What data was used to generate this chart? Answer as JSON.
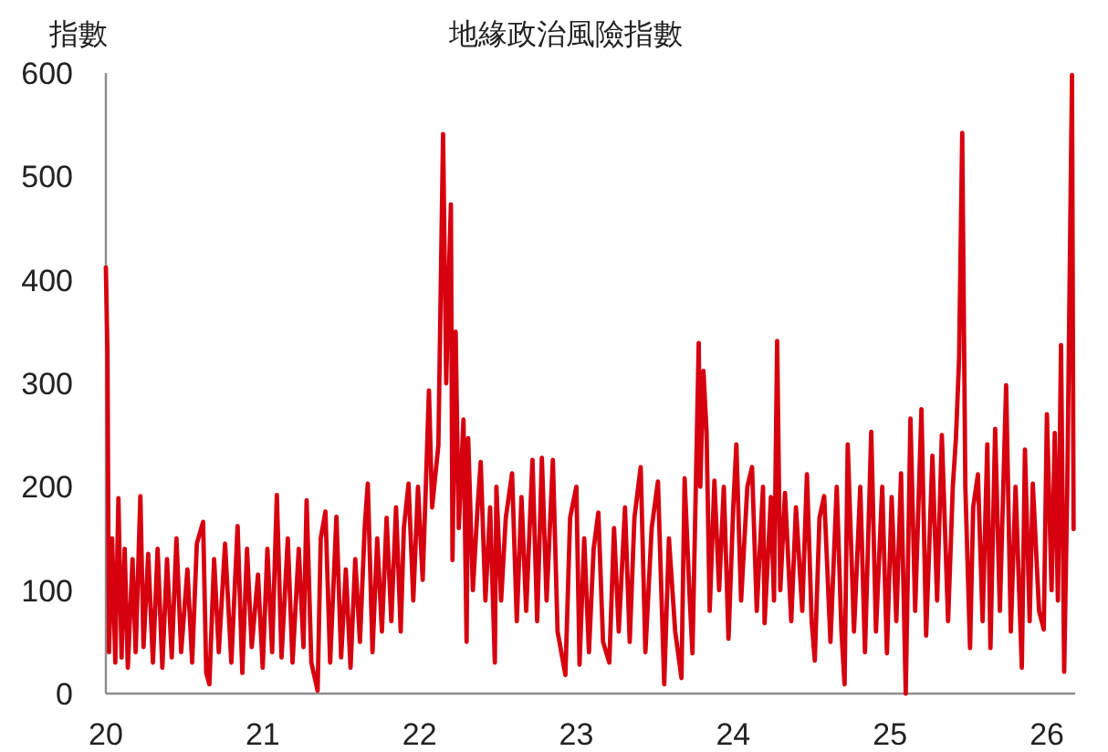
{
  "chart_data": {
    "type": "line",
    "title": "地緣政治風險指數",
    "ylabel": "指數",
    "x": [
      2020.0,
      2020.01,
      2020.02,
      2020.04,
      2020.06,
      2020.08,
      2020.1,
      2020.12,
      2020.14,
      2020.17,
      2020.19,
      2020.22,
      2020.24,
      2020.27,
      2020.3,
      2020.33,
      2020.36,
      2020.39,
      2020.42,
      2020.45,
      2020.48,
      2020.52,
      2020.55,
      2020.58,
      2020.62,
      2020.64,
      2020.66,
      2020.69,
      2020.72,
      2020.76,
      2020.8,
      2020.84,
      2020.87,
      2020.9,
      2020.93,
      2020.97,
      2021.0,
      2021.03,
      2021.06,
      2021.09,
      2021.12,
      2021.16,
      2021.19,
      2021.23,
      2021.26,
      2021.28,
      2021.31,
      2021.35,
      2021.37,
      2021.4,
      2021.43,
      2021.47,
      2021.5,
      2021.53,
      2021.56,
      2021.59,
      2021.62,
      2021.65,
      2021.67,
      2021.7,
      2021.73,
      2021.76,
      2021.79,
      2021.82,
      2021.85,
      2021.88,
      2021.9,
      2021.93,
      2021.96,
      2021.99,
      2022.02,
      2022.04,
      2022.06,
      2022.08,
      2022.1,
      2022.12,
      2022.15,
      2022.17,
      2022.19,
      2022.2,
      2022.21,
      2022.23,
      2022.25,
      2022.28,
      2022.3,
      2022.31,
      2022.34,
      2022.37,
      2022.39,
      2022.42,
      2022.45,
      2022.48,
      2022.49,
      2022.52,
      2022.55,
      2022.59,
      2022.62,
      2022.65,
      2022.68,
      2022.72,
      2022.75,
      2022.78,
      2022.81,
      2022.85,
      2022.88,
      2022.93,
      2022.96,
      2023.0,
      2023.02,
      2023.05,
      2023.08,
      2023.11,
      2023.14,
      2023.17,
      2023.21,
      2023.24,
      2023.27,
      2023.31,
      2023.34,
      2023.37,
      2023.41,
      2023.44,
      2023.48,
      2023.52,
      2023.56,
      2023.59,
      2023.63,
      2023.67,
      2023.69,
      2023.72,
      2023.74,
      2023.78,
      2023.79,
      2023.81,
      2023.83,
      2023.85,
      2023.88,
      2023.91,
      2023.94,
      2023.97,
      2024.0,
      2024.02,
      2024.05,
      2024.09,
      2024.12,
      2024.15,
      2024.19,
      2024.2,
      2024.24,
      2024.26,
      2024.28,
      2024.3,
      2024.33,
      2024.37,
      2024.4,
      2024.44,
      2024.47,
      2024.5,
      2024.52,
      2024.55,
      2024.58,
      2024.62,
      2024.66,
      2024.69,
      2024.71,
      2024.73,
      2024.77,
      2024.81,
      2024.84,
      2024.88,
      2024.91,
      2024.95,
      2024.98,
      2025.01,
      2025.04,
      2025.07,
      2025.1,
      2025.13,
      2025.16,
      2025.2,
      2025.23,
      2025.27,
      2025.3,
      2025.33,
      2025.37,
      2025.4,
      2025.42,
      2025.44,
      2025.46,
      2025.48,
      2025.51,
      2025.53,
      2025.56,
      2025.59,
      2025.62,
      2025.64,
      2025.67,
      2025.7,
      2025.74,
      2025.77,
      2025.8,
      2025.84,
      2025.86,
      2025.89,
      2025.91,
      2025.95,
      2025.98,
      2026.0,
      2026.03,
      2026.05,
      2026.07,
      2026.09,
      2026.11,
      2026.13,
      2026.16,
      2026.17
    ],
    "series": [
      {
        "color": "#d7000f",
        "values": [
          412,
          330,
          40,
          150,
          30,
          189,
          35,
          140,
          25,
          130,
          40,
          191,
          45,
          135,
          30,
          140,
          25,
          130,
          35,
          150,
          40,
          120,
          30,
          145,
          166,
          20,
          9,
          130,
          40,
          145,
          30,
          162,
          20,
          140,
          45,
          115,
          25,
          140,
          40,
          192,
          35,
          150,
          30,
          140,
          45,
          187,
          30,
          3,
          150,
          176,
          30,
          171,
          35,
          120,
          25,
          130,
          50,
          160,
          203,
          40,
          150,
          60,
          170,
          70,
          180,
          60,
          160,
          203,
          90,
          200,
          110,
          200,
          293,
          180,
          210,
          240,
          541,
          300,
          420,
          473,
          129,
          350,
          160,
          265,
          50,
          247,
          100,
          180,
          224,
          90,
          180,
          30,
          200,
          90,
          170,
          213,
          70,
          190,
          80,
          226,
          70,
          228,
          90,
          226,
          60,
          18,
          170,
          200,
          28,
          150,
          40,
          140,
          175,
          50,
          30,
          160,
          60,
          180,
          50,
          170,
          219,
          40,
          160,
          205,
          9,
          150,
          60,
          15,
          208,
          100,
          39,
          339,
          200,
          312,
          253,
          80,
          206,
          100,
          200,
          53,
          180,
          241,
          90,
          200,
          219,
          80,
          200,
          68,
          190,
          90,
          341,
          100,
          194,
          70,
          180,
          80,
          212,
          70,
          32,
          170,
          191,
          50,
          200,
          60,
          9,
          241,
          60,
          200,
          40,
          253,
          60,
          200,
          39,
          190,
          70,
          213,
          0,
          266,
          80,
          275,
          56,
          230,
          90,
          250,
          70,
          200,
          247,
          323,
          542,
          200,
          44,
          180,
          212,
          70,
          241,
          44,
          256,
          80,
          298,
          60,
          200,
          25,
          236,
          70,
          203,
          80,
          62,
          270,
          100,
          252,
          90,
          337,
          21,
          200,
          598,
          159
        ]
      }
    ],
    "xlim": [
      2020,
      2026.18
    ],
    "xticks": [
      {
        "value": 2020,
        "label": "20"
      },
      {
        "value": 2021,
        "label": "21"
      },
      {
        "value": 2022,
        "label": "22"
      },
      {
        "value": 2023,
        "label": "23"
      },
      {
        "value": 2024,
        "label": "24"
      },
      {
        "value": 2025,
        "label": "25"
      },
      {
        "value": 2026,
        "label": "26"
      }
    ],
    "ylim": [
      0,
      600
    ],
    "yticks": [
      0,
      100,
      200,
      300,
      400,
      500,
      600
    ],
    "line_style": "solid"
  }
}
